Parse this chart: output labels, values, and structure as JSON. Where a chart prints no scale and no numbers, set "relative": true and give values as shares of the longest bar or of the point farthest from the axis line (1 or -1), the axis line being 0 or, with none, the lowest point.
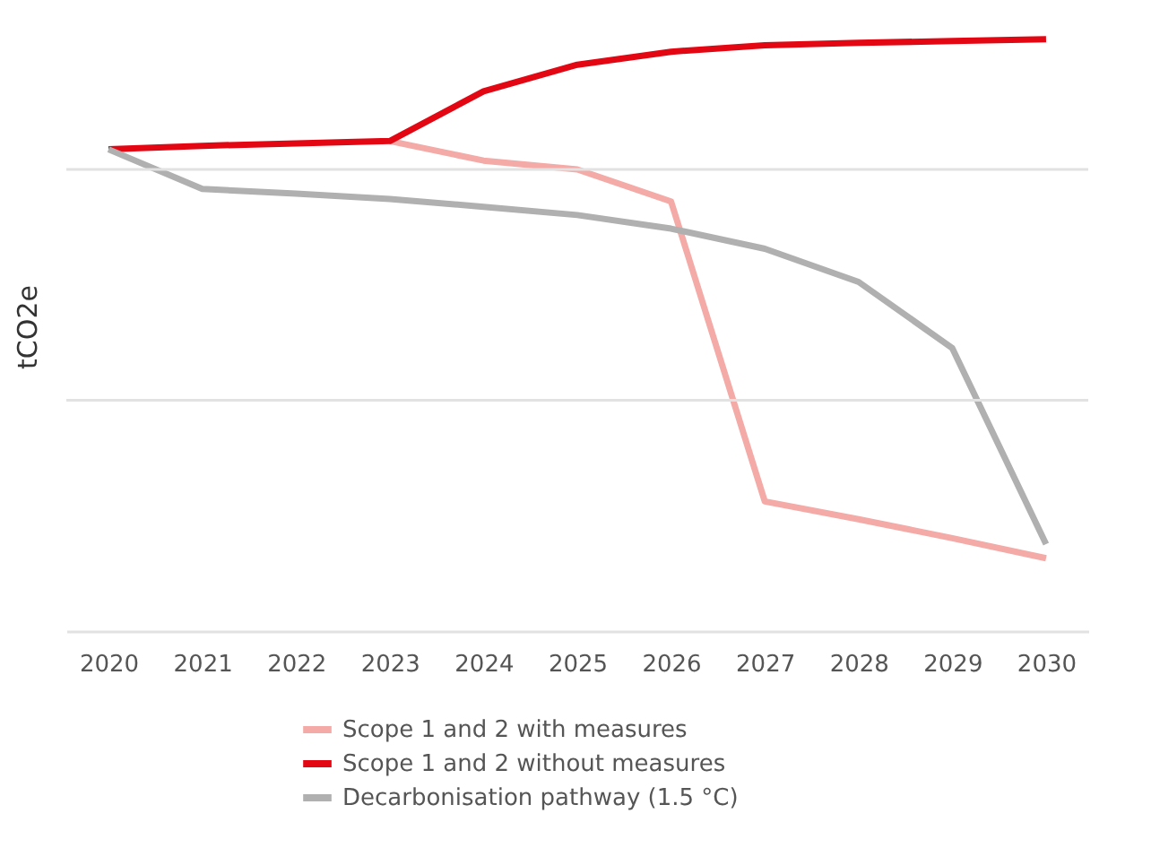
{
  "chart_data": {
    "type": "line",
    "ylabel": "tCO2e",
    "relative": true,
    "legend": "bottom",
    "marker": "none",
    "line_style": "solid",
    "categories": [
      "2020",
      "2021",
      "2022",
      "2023",
      "2024",
      "2025",
      "2026",
      "2027",
      "2028",
      "2029",
      "2030"
    ],
    "series": [
      {
        "name": "Scope 1 and 2 with measures",
        "color": "#f4aaa6",
        "values": [
          null,
          null,
          null,
          0.828,
          0.795,
          0.78,
          0.726,
          0.219,
          0.189,
          0.157,
          0.123
        ]
      },
      {
        "name": "Scope 1 and 2 without measures",
        "color": "#e30613",
        "values": [
          0.814,
          0.82,
          0.824,
          0.828,
          0.912,
          0.957,
          0.979,
          0.99,
          0.994,
          0.997,
          1
        ]
      },
      {
        "name": "Decarbonisation pathway (1.5 °C)",
        "color": "#b0b0b0",
        "values": [
          0.814,
          0.747,
          0.739,
          0.73,
          0.717,
          0.703,
          0.68,
          0.646,
          0.59,
          0.478,
          0.147
        ]
      }
    ],
    "ref_lines": [
      {
        "axis": "y",
        "value": 0.39,
        "color": "#e2e2e2",
        "line_style": "solid"
      },
      {
        "axis": "y",
        "value": 0.78,
        "color": "#e2e2e2",
        "line_style": "solid"
      }
    ]
  }
}
